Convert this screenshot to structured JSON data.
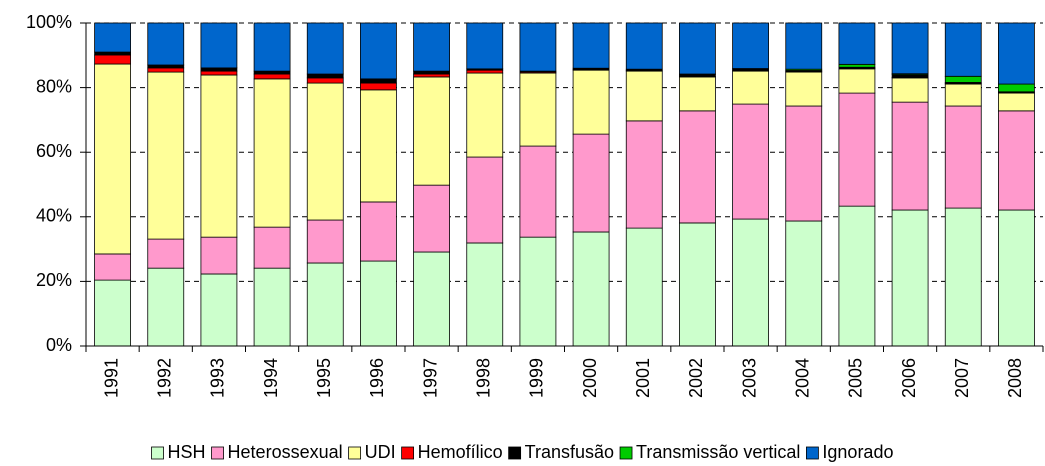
{
  "chart_data": {
    "type": "stacked_bar",
    "categories": [
      "1991",
      "1992",
      "1993",
      "1994",
      "1995",
      "1996",
      "1997",
      "1998",
      "1999",
      "2000",
      "2001",
      "2002",
      "2003",
      "2004",
      "2005",
      "2006",
      "2007",
      "2008"
    ],
    "series": [
      {
        "name": "HSH",
        "color": "#ccffcc",
        "values": [
          20.4,
          24.1,
          22.3,
          24.1,
          25.7,
          26.3,
          29.1,
          31.9,
          33.7,
          35.3,
          36.5,
          38.1,
          39.3,
          38.7,
          43.3,
          42.1,
          42.7,
          42.1
        ]
      },
      {
        "name": "Heterossexual",
        "color": "#ff99cc",
        "values": [
          8.1,
          9.0,
          11.4,
          12.7,
          13.3,
          18.3,
          20.7,
          26.6,
          28.2,
          30.3,
          33.2,
          34.7,
          35.6,
          35.6,
          35.0,
          33.4,
          31.6,
          30.7
        ]
      },
      {
        "name": "UDI",
        "color": "#ffff99",
        "values": [
          58.8,
          51.7,
          50.2,
          45.9,
          42.4,
          34.7,
          33.5,
          26.0,
          22.6,
          19.8,
          15.4,
          10.5,
          10.2,
          10.5,
          7.5,
          7.5,
          6.8,
          5.5
        ]
      },
      {
        "name": "Hemofílico",
        "color": "#ff0000",
        "values": [
          2.8,
          1.3,
          1.2,
          1.5,
          1.6,
          2.1,
          0.9,
          0.9,
          0.3,
          0.2,
          0.2,
          0.2,
          0.2,
          0.2,
          0.2,
          0.2,
          0.2,
          0.2
        ]
      },
      {
        "name": "Transfusão",
        "color": "#000000",
        "values": [
          0.9,
          0.9,
          1.0,
          0.9,
          1.2,
          1.3,
          0.9,
          0.4,
          0.3,
          0.4,
          0.4,
          0.6,
          0.4,
          0.3,
          0.3,
          0.8,
          0.3,
          0.2
        ]
      },
      {
        "name": "Transmissão vertical",
        "color": "#00cc00",
        "values": [
          0,
          0,
          0,
          0,
          0,
          0,
          0,
          0,
          0,
          0,
          0,
          0.1,
          0.2,
          0.4,
          0.9,
          0.3,
          1.9,
          2.4
        ]
      },
      {
        "name": "Ignorado",
        "color": "#0066cc",
        "values": [
          9.0,
          13.0,
          13.9,
          14.9,
          15.8,
          17.3,
          14.9,
          14.2,
          14.9,
          14.0,
          14.3,
          15.8,
          14.1,
          14.3,
          12.8,
          15.7,
          16.5,
          18.9
        ]
      }
    ],
    "ylim": [
      0,
      100
    ],
    "yticks": [
      {
        "value": 0,
        "label": "0%"
      },
      {
        "value": 20,
        "label": "20%"
      },
      {
        "value": 40,
        "label": "40%"
      },
      {
        "value": 60,
        "label": "60%"
      },
      {
        "value": 80,
        "label": "80%"
      },
      {
        "value": 100,
        "label": "100%"
      }
    ],
    "grid": true,
    "legend": "bottom"
  }
}
